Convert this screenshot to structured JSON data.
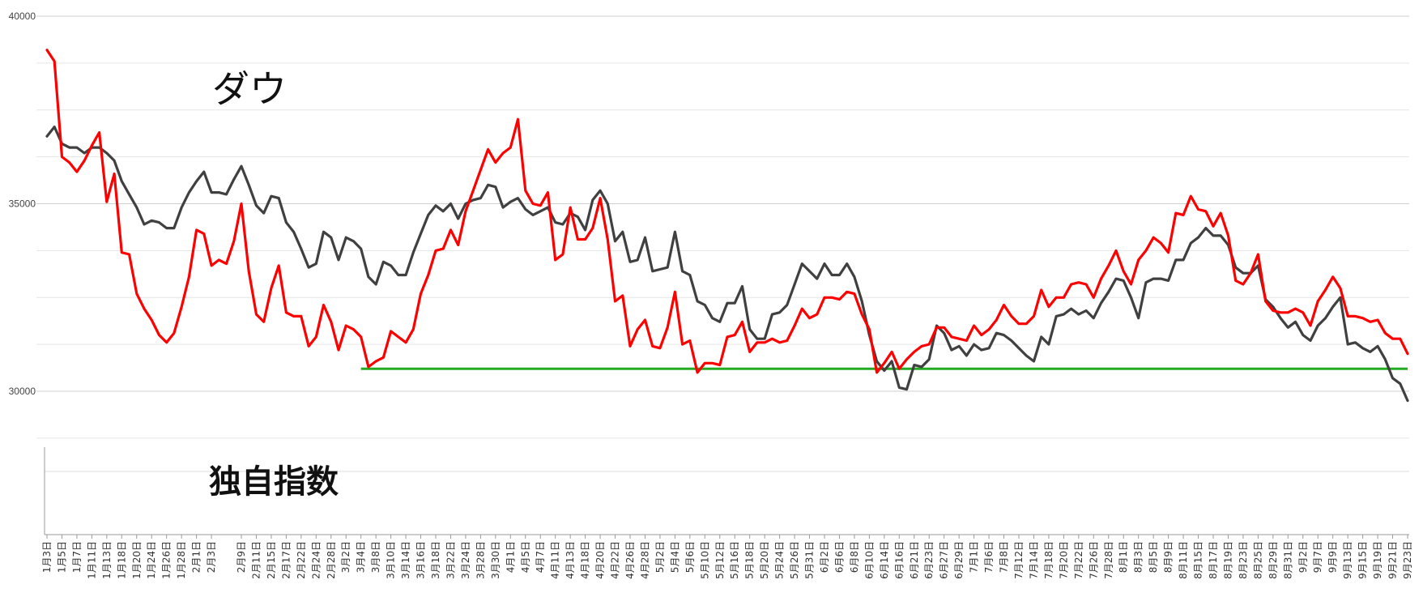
{
  "chart_data": {
    "type": "line",
    "title": "",
    "xlabel": "",
    "ylabel": "",
    "ylim": [
      28500,
      40000
    ],
    "yticks": [
      30000,
      35000,
      40000
    ],
    "ytick_labels": [
      "30000",
      "35000",
      "40000"
    ],
    "grid": true,
    "legend": "none",
    "annotations": {
      "dow": "ダウ",
      "index": "独自指数"
    },
    "x": [
      "1月3日",
      "1月4日",
      "1月5日",
      "1月6日",
      "1月7日",
      "1月10日",
      "1月11日",
      "1月12日",
      "1月13日",
      "1月14日",
      "1月18日",
      "1月19日",
      "1月20日",
      "1月21日",
      "1月24日",
      "1月25日",
      "1月26日",
      "1月27日",
      "1月28日",
      "1月31日",
      "2月1日",
      "2月2日",
      "2月3日",
      "2月4日",
      "2月7日",
      "2月8日",
      "2月9日",
      "2月10日",
      "2月11日",
      "2月14日",
      "2月15日",
      "2月16日",
      "2月17日",
      "2月18日",
      "2月22日",
      "2月23日",
      "2月24日",
      "2月25日",
      "2月28日",
      "3月1日",
      "3月2日",
      "3月3日",
      "3月4日",
      "3月7日",
      "3月8日",
      "3月9日",
      "3月10日",
      "3月11日",
      "3月14日",
      "3月15日",
      "3月16日",
      "3月17日",
      "3月18日",
      "3月21日",
      "3月22日",
      "3月23日",
      "3月24日",
      "3月25日",
      "3月28日",
      "3月29日",
      "3月30日",
      "3月31日",
      "4月1日",
      "4月4日",
      "4月5日",
      "4月6日",
      "4月7日",
      "4月8日",
      "4月11日",
      "4月12日",
      "4月13日",
      "4月14日",
      "4月18日",
      "4月19日",
      "4月20日",
      "4月21日",
      "4月22日",
      "4月25日",
      "4月26日",
      "4月27日",
      "4月28日",
      "4月29日",
      "5月2日",
      "5月3日",
      "5月4日",
      "5月5日",
      "5月6日",
      "5月9日",
      "5月10日",
      "5月11日",
      "5月12日",
      "5月13日",
      "5月16日",
      "5月17日",
      "5月18日",
      "5月19日",
      "5月20日",
      "5月23日",
      "5月24日",
      "5月25日",
      "5月26日",
      "5月27日",
      "5月31日",
      "6月1日",
      "6月2日",
      "6月3日",
      "6月6日",
      "6月7日",
      "6月8日",
      "6月9日",
      "6月10日",
      "6月13日",
      "6月14日",
      "6月15日",
      "6月16日",
      "6月17日",
      "6月21日",
      "6月22日",
      "6月23日",
      "6月24日",
      "6月27日",
      "6月28日",
      "6月29日",
      "6月30日",
      "7月1日",
      "7月5日",
      "7月6日",
      "7月7日",
      "7月8日",
      "7月11日",
      "7月12日",
      "7月13日",
      "7月14日",
      "7月15日",
      "7月18日",
      "7月19日",
      "7月20日",
      "7月21日",
      "7月22日",
      "7月25日",
      "7月26日",
      "7月27日",
      "7月28日",
      "7月29日",
      "8月1日",
      "8月2日",
      "8月3日",
      "8月4日",
      "8月5日",
      "8月8日",
      "8月9日",
      "8月10日",
      "8月11日",
      "8月12日",
      "8月15日",
      "8月16日",
      "8月17日",
      "8月18日",
      "8月19日",
      "8月22日",
      "8月23日",
      "8月24日",
      "8月25日",
      "8月26日",
      "8月29日",
      "8月30日",
      "8月31日",
      "9月1日",
      "9月2日",
      "9月6日",
      "9月7日",
      "9月8日",
      "9月9日",
      "9月12日",
      "9月13日",
      "9月14日",
      "9月15日",
      "9月16日",
      "9月19日",
      "9月20日",
      "9月21日",
      "9月22日",
      "9月23日"
    ],
    "xtick_labels": [
      "1月3日",
      "1月5日",
      "1月7日",
      "1月11日",
      "1月13日",
      "1月18日",
      "1月20日",
      "1月24日",
      "1月26日",
      "1月28日",
      "2月1日",
      "2月3日",
      "2月9日",
      "2月11日",
      "2月15日",
      "2月17日",
      "2月22日",
      "2月24日",
      "2月28日",
      "3月2日",
      "3月4日",
      "3月8日",
      "3月10日",
      "3月14日",
      "3月16日",
      "3月18日",
      "3月22日",
      "3月24日",
      "3月28日",
      "3月30日",
      "4月1日",
      "4月5日",
      "4月7日",
      "4月11日",
      "4月13日",
      "4月18日",
      "4月20日",
      "4月22日",
      "4月26日",
      "4月28日",
      "5月2日",
      "5月4日",
      "5月6日",
      "5月10日",
      "5月12日",
      "5月16日",
      "5月18日",
      "5月20日",
      "5月24日",
      "5月26日",
      "5月31日",
      "6月2日",
      "6月6日",
      "6月8日",
      "6月10日",
      "6月14日",
      "6月16日",
      "6月21日",
      "6月23日",
      "6月27日",
      "6月29日",
      "7月1日",
      "7月6日",
      "7月8日",
      "7月12日",
      "7月14日",
      "7月18日",
      "7月20日",
      "7月22日",
      "7月26日",
      "7月28日",
      "8月1日",
      "8月3日",
      "8月5日",
      "8月9日",
      "8月11日",
      "8月15日",
      "8月17日",
      "8月19日",
      "8月23日",
      "8月25日",
      "8月29日",
      "8月31日",
      "9月2日",
      "9月7日",
      "9月9日",
      "9月13日",
      "9月15日",
      "9月19日",
      "9月21日",
      "9月23日"
    ],
    "series": [
      {
        "name": "",
        "color": "#404040",
        "values": [
          36800,
          37050,
          36600,
          36500,
          36500,
          36350,
          36500,
          36500,
          36350,
          36150,
          35600,
          35250,
          34900,
          34450,
          34550,
          34500,
          34350,
          34350,
          34900,
          35300,
          35600,
          35850,
          35300,
          35300,
          35250,
          35650,
          36000,
          35500,
          34950,
          34750,
          35200,
          35150,
          34500,
          34250,
          33800,
          33300,
          33400,
          34250,
          34100,
          33500,
          34100,
          34000,
          33800,
          33050,
          32850,
          33450,
          33350,
          33100,
          33100,
          33700,
          34200,
          34700,
          34950,
          34800,
          35000,
          34600,
          35000,
          35100,
          35150,
          35500,
          35450,
          34900,
          35050,
          35150,
          34850,
          34700,
          34800,
          34900,
          34500,
          34450,
          34750,
          34650,
          34300,
          35100,
          35350,
          35000,
          34000,
          34250,
          33450,
          33500,
          34100,
          33200,
          33250,
          33300,
          34250,
          33200,
          33100,
          32400,
          32300,
          31950,
          31850,
          32350,
          32350,
          32800,
          31650,
          31400,
          31400,
          32050,
          32100,
          32300,
          32850,
          33400,
          33200,
          33000,
          33400,
          33100,
          33100,
          33400,
          33050,
          32400,
          31500,
          30800,
          30550,
          30800,
          30100,
          30050,
          30700,
          30650,
          30850,
          31750,
          31550,
          31100,
          31200,
          30950,
          31250,
          31100,
          31150,
          31550,
          31500,
          31350,
          31150,
          30950,
          30800,
          31450,
          31250,
          32000,
          32050,
          32200,
          32050,
          32150,
          31950,
          32350,
          32650,
          33000,
          32950,
          32500,
          31950,
          32900,
          33000,
          33000,
          32950,
          33500,
          33500,
          33950,
          34100,
          34350,
          34150,
          34150,
          33900,
          33300,
          33150,
          33150,
          33350,
          32450,
          32250,
          31950,
          31700,
          31850,
          31500,
          31350,
          31750,
          31950,
          32250,
          32500,
          31250,
          31300,
          31150,
          31050,
          31200,
          30850,
          30350,
          30200,
          29750
        ]
      },
      {
        "name": "",
        "color": "#ff0000",
        "values": [
          39100,
          38800,
          36250,
          36100,
          35850,
          36150,
          36550,
          36900,
          35050,
          35800,
          33700,
          33650,
          32600,
          32200,
          31900,
          31500,
          31300,
          31550,
          32250,
          33050,
          34300,
          34200,
          33350,
          33500,
          33400,
          34000,
          35000,
          33200,
          32050,
          31850,
          32750,
          33350,
          32100,
          32000,
          32000,
          31200,
          31450,
          32300,
          31850,
          31100,
          31750,
          31650,
          31450,
          30650,
          30800,
          30900,
          31600,
          31450,
          31300,
          31650,
          32600,
          33100,
          33750,
          33800,
          34300,
          33900,
          34800,
          35350,
          35900,
          36450,
          36100,
          36350,
          36500,
          37250,
          35350,
          35000,
          34950,
          35300,
          33500,
          33650,
          34900,
          34050,
          34050,
          34350,
          35150,
          34050,
          32400,
          32550,
          31200,
          31650,
          31900,
          31200,
          31150,
          31700,
          32650,
          31250,
          31350,
          30500,
          30750,
          30750,
          30700,
          31450,
          31500,
          31850,
          31050,
          31300,
          31300,
          31400,
          31300,
          31350,
          31750,
          32200,
          31950,
          32050,
          32500,
          32500,
          32450,
          32650,
          32600,
          32050,
          31650,
          30500,
          30750,
          31050,
          30600,
          30850,
          31050,
          31200,
          31250,
          31700,
          31700,
          31450,
          31400,
          31350,
          31750,
          31500,
          31650,
          31900,
          32300,
          32000,
          31800,
          31800,
          32000,
          32700,
          32250,
          32500,
          32500,
          32850,
          32900,
          32850,
          32500,
          33000,
          33350,
          33750,
          33200,
          32850,
          33500,
          33750,
          34100,
          33950,
          33700,
          34750,
          34700,
          35200,
          34850,
          34800,
          34400,
          34750,
          34150,
          32950,
          32850,
          33150,
          33650,
          32400,
          32150,
          32100,
          32100,
          32200,
          32100,
          31750,
          32400,
          32700,
          33050,
          32750,
          32000,
          32000,
          31950,
          31850,
          31900,
          31550,
          31400,
          31400,
          31000
        ]
      }
    ],
    "reference_line": {
      "value": 30600,
      "color": "#22aa22",
      "from": "3月4日",
      "to": "9月23日"
    }
  }
}
